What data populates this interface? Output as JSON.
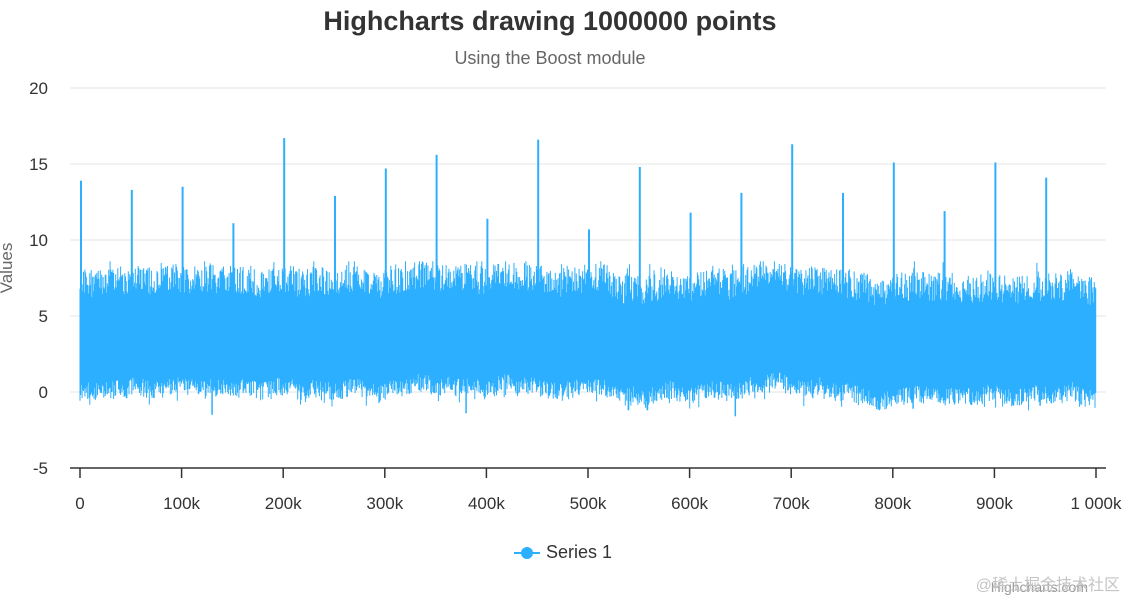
{
  "chart": {
    "title": "Highcharts drawing 1000000 points",
    "subtitle": "Using the Boost module",
    "credits": "Highcharts.com",
    "watermark": "@稀土掘金技术社区",
    "legend_label": "Series 1",
    "colors": {
      "series": "#2caffe",
      "axis_line": "#333333",
      "gridline": "#e6e6e6",
      "title": "#333333",
      "subtitle": "#666666",
      "tick_label": "#333333",
      "axis_title": "#666666"
    }
  },
  "chart_data": {
    "type": "line",
    "title": "Highcharts drawing 1000000 points",
    "subtitle": "Using the Boost module",
    "xlabel": "",
    "ylabel": "Values",
    "xlim": [
      0,
      1000000
    ],
    "ylim": [
      -5,
      20
    ],
    "x_ticks": [
      0,
      100000,
      200000,
      300000,
      400000,
      500000,
      600000,
      700000,
      800000,
      900000,
      1000000
    ],
    "x_tick_labels": [
      "0",
      "100k",
      "200k",
      "300k",
      "400k",
      "500k",
      "600k",
      "700k",
      "800k",
      "900k",
      "1 000k"
    ],
    "y_ticks": [
      -5,
      0,
      5,
      10,
      15,
      20
    ],
    "y_tick_labels": [
      "-5",
      "0",
      "5",
      "10",
      "15",
      "20"
    ],
    "grid": true,
    "legend_position": "bottom-center",
    "series": [
      {
        "name": "Series 1",
        "color": "#2caffe",
        "point_count": 1000000,
        "typical_band": [
          0,
          7.5
        ],
        "spikes": [
          {
            "x": 0,
            "y": 13.9
          },
          {
            "x": 50000,
            "y": 13.3
          },
          {
            "x": 100000,
            "y": 13.5
          },
          {
            "x": 150000,
            "y": 11.1
          },
          {
            "x": 200000,
            "y": 16.7
          },
          {
            "x": 250000,
            "y": 12.9
          },
          {
            "x": 300000,
            "y": 14.7
          },
          {
            "x": 350000,
            "y": 15.6
          },
          {
            "x": 400000,
            "y": 11.4
          },
          {
            "x": 450000,
            "y": 16.6
          },
          {
            "x": 500000,
            "y": 10.7
          },
          {
            "x": 550000,
            "y": 14.8
          },
          {
            "x": 600000,
            "y": 11.8
          },
          {
            "x": 650000,
            "y": 13.1
          },
          {
            "x": 700000,
            "y": 16.3
          },
          {
            "x": 750000,
            "y": 13.1
          },
          {
            "x": 800000,
            "y": 15.1
          },
          {
            "x": 850000,
            "y": 11.9
          },
          {
            "x": 900000,
            "y": 15.1
          },
          {
            "x": 950000,
            "y": 14.1
          }
        ],
        "dips": [
          {
            "x": 130000,
            "y": -1.5
          },
          {
            "x": 380000,
            "y": -1.4
          },
          {
            "x": 645000,
            "y": -1.6
          },
          {
            "x": 820000,
            "y": -1.1
          },
          {
            "x": 945000,
            "y": -0.9
          }
        ]
      }
    ]
  }
}
